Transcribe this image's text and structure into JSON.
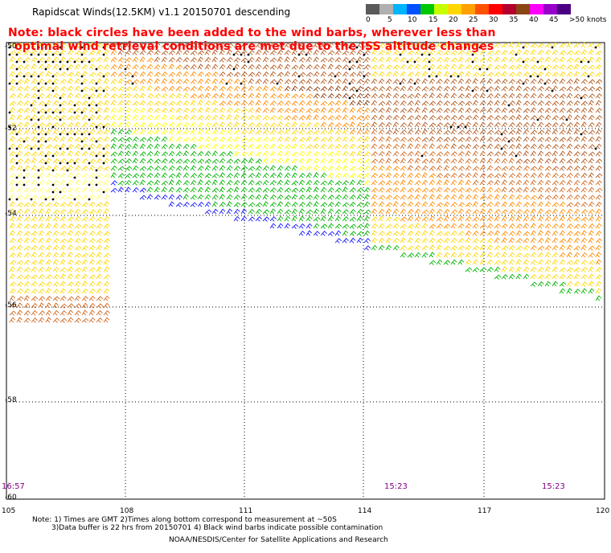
{
  "title": "Rapidscat Winds(12.5KM) v1.1 20150701 descending",
  "note_line1": "Note: black circles have been added to the wind barbs, wherever less than",
  "note_line2": "optimal wind retrieval conditions are met due to the ISS altitude changes",
  "legend": {
    "labels": [
      "0",
      "5",
      "10",
      "15",
      "20",
      "25",
      "30",
      "35",
      "40",
      "45"
    ],
    "units": ">50 knots",
    "colors": [
      "#5a5a5a",
      "#b0b0b0",
      "#00b4ff",
      "#0050ff",
      "#00c800",
      "#c8ff00",
      "#ffd700",
      "#ffa000",
      "#ff5000",
      "#ff0000",
      "#b4002d",
      "#8b4513",
      "#ff00ff",
      "#9600c8",
      "#4b0082"
    ]
  },
  "map": {
    "lat_labels": [
      "-50",
      "-52",
      "-54",
      "-56",
      "-58",
      "-60"
    ],
    "lon_labels": [
      "105",
      "108",
      "111",
      "114",
      "117",
      "120"
    ],
    "lon_range": [
      105,
      120
    ],
    "lat_range": [
      -50,
      -60
    ]
  },
  "times": [
    "16:57",
    "15:23",
    "15:23"
  ],
  "footer": {
    "line1": "Note: 1) Times are GMT 2)Times along bottom correspond to measurement at ~50S",
    "line2": "3)Data buffer is 22 hrs from 20150701 4) Black wind barbs indicate possible contamination",
    "line3": "NOAA/NESDIS/Center for Satellite Applications and Research"
  }
}
